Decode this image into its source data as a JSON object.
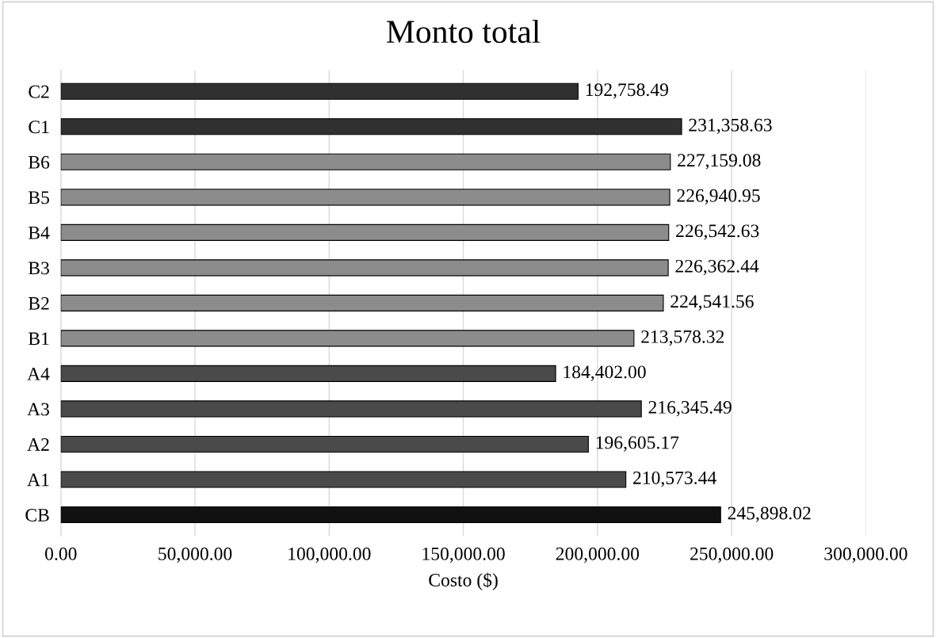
{
  "chart_data": {
    "type": "bar",
    "orientation": "horizontal",
    "title": "Monto total",
    "xlabel": "Costo ($)",
    "categories": [
      "C2",
      "C1",
      "B6",
      "B5",
      "B4",
      "B3",
      "B2",
      "B1",
      "A4",
      "A3",
      "A2",
      "A1",
      "CB"
    ],
    "values": [
      192758.49,
      231358.63,
      227159.08,
      226940.95,
      226542.63,
      226362.44,
      224541.56,
      213578.32,
      184402.0,
      216345.49,
      196605.17,
      210573.44,
      245898.02
    ],
    "value_labels": [
      "192,758.49",
      "231,358.63",
      "227,159.08",
      "226,940.95",
      "226,542.63",
      "226,362.44",
      "224,541.56",
      "213,578.32",
      "184,402.00",
      "216,345.49",
      "196,605.17",
      "210,573.44",
      "245,898.02"
    ],
    "colors": [
      "#303030",
      "#303030",
      "#8c8c8c",
      "#8c8c8c",
      "#8c8c8c",
      "#8c8c8c",
      "#8c8c8c",
      "#8c8c8c",
      "#4a4a4a",
      "#4a4a4a",
      "#4a4a4a",
      "#4a4a4a",
      "#111111"
    ],
    "xlim": [
      0,
      300000
    ],
    "xticks": [
      {
        "value": 0,
        "label": "0.00"
      },
      {
        "value": 50000,
        "label": "50,000.00"
      },
      {
        "value": 100000,
        "label": "100,000.00"
      },
      {
        "value": 150000,
        "label": "150,000.00"
      },
      {
        "value": 200000,
        "label": "200,000.00"
      },
      {
        "value": 250000,
        "label": "250,000.00"
      },
      {
        "value": 300000,
        "label": "300,000.00"
      }
    ],
    "grid": "x"
  }
}
